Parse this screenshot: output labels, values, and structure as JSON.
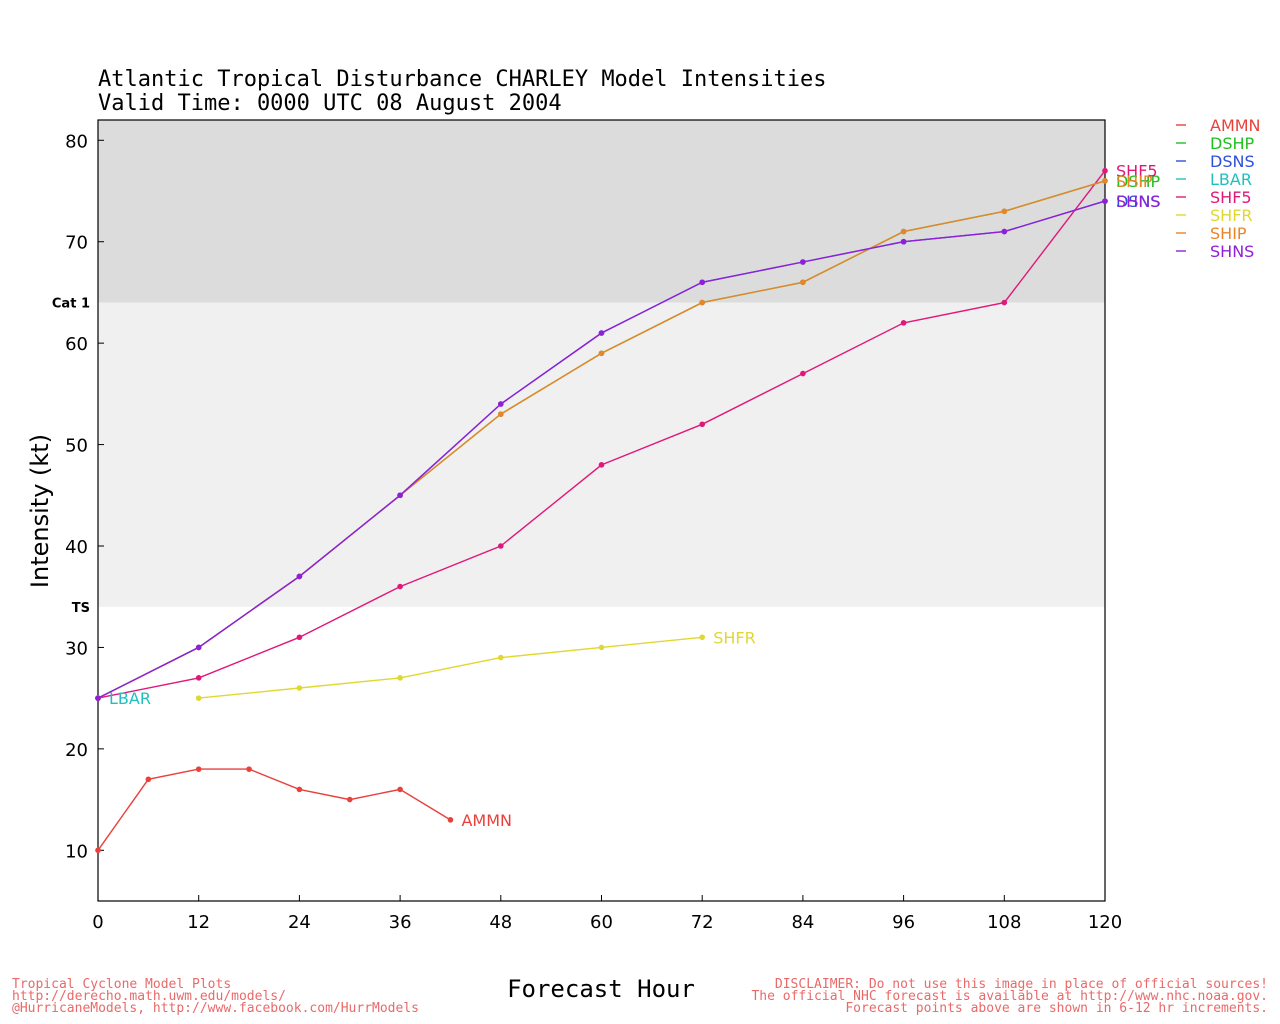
{
  "chart_data": {
    "type": "line",
    "title": "Atlantic Tropical Disturbance CHARLEY Model Intensities",
    "subtitle": "Valid Time: 0000 UTC 08 August 2004",
    "xlabel": "Forecast Hour",
    "ylabel": "Intensity (kt)",
    "xlim": [
      0,
      120
    ],
    "ylim": [
      5,
      82
    ],
    "xticks": [
      0,
      12,
      24,
      36,
      48,
      60,
      72,
      84,
      96,
      108,
      120
    ],
    "yticks": [
      10,
      20,
      30,
      40,
      50,
      60,
      70,
      80
    ],
    "bands": [
      {
        "label": "Cat  1",
        "from": 64,
        "to": 82,
        "color": "#dcdcdc"
      },
      {
        "label": "TS",
        "from": 34,
        "to": 64,
        "color": "#f0f0f0"
      }
    ],
    "legend_position": "right",
    "series": [
      {
        "name": "AMMN",
        "color": "#e8413c",
        "x": [
          0,
          6,
          12,
          18,
          24,
          30,
          36,
          42
        ],
        "y": [
          10,
          17,
          18,
          18,
          16,
          15,
          16,
          13
        ]
      },
      {
        "name": "DSHP",
        "color": "#20c020",
        "x": [
          0,
          12,
          24,
          36,
          48,
          60,
          72,
          84,
          96,
          108,
          120
        ],
        "y": [
          25,
          30,
          37,
          45,
          53,
          59,
          64,
          66,
          71,
          73,
          76
        ]
      },
      {
        "name": "DSNS",
        "color": "#2f4fdc",
        "x": [
          0,
          12,
          24,
          36,
          48,
          60,
          72,
          84,
          96,
          108,
          120
        ],
        "y": [
          25,
          30,
          37,
          45,
          54,
          61,
          66,
          68,
          70,
          71,
          74
        ]
      },
      {
        "name": "LBAR",
        "color": "#20c0c0",
        "x": [
          0
        ],
        "y": [
          25
        ]
      },
      {
        "name": "SHF5",
        "color": "#e0187a",
        "x": [
          0,
          12,
          24,
          36,
          48,
          60,
          72,
          84,
          96,
          108,
          120
        ],
        "y": [
          25,
          27,
          31,
          36,
          40,
          48,
          52,
          57,
          62,
          64,
          77
        ]
      },
      {
        "name": "SHFR",
        "color": "#e0d830",
        "x": [
          12,
          24,
          36,
          48,
          60,
          72
        ],
        "y": [
          25,
          26,
          27,
          29,
          30,
          31
        ]
      },
      {
        "name": "SHIP",
        "color": "#e8852a",
        "x": [
          0,
          12,
          24,
          36,
          48,
          60,
          72,
          84,
          96,
          108,
          120
        ],
        "y": [
          25,
          30,
          37,
          45,
          53,
          59,
          64,
          66,
          71,
          73,
          76
        ]
      },
      {
        "name": "SHNS",
        "color": "#9020d8",
        "x": [
          0,
          12,
          24,
          36,
          48,
          60,
          72,
          84,
          96,
          108,
          120
        ],
        "y": [
          25,
          30,
          37,
          45,
          54,
          61,
          66,
          68,
          70,
          71,
          74
        ]
      }
    ]
  },
  "footer": {
    "left": [
      "Tropical Cyclone Model Plots",
      "http://derecho.math.uwm.edu/models/",
      "@HurricaneModels, http://www.facebook.com/HurrModels"
    ],
    "right": [
      "DISCLAIMER: Do not use this image in place of official sources!",
      "The official NHC forecast is available at http://www.nhc.noaa.gov.",
      "Forecast points above are shown in 6-12 hr increments."
    ],
    "color": "#e86a6a"
  }
}
